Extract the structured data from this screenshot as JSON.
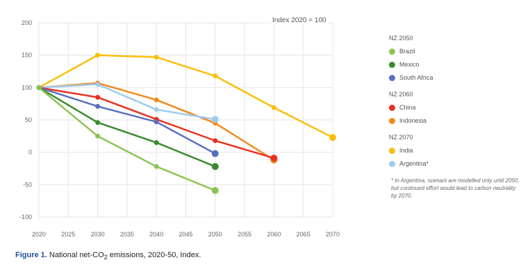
{
  "chart_data": {
    "type": "line",
    "annotation": "Index 2020 = 100",
    "x_ticks": [
      "2020",
      "2025",
      "2030",
      "2035",
      "2040",
      "2045",
      "2050",
      "2055",
      "2060",
      "2065",
      "2070"
    ],
    "y_ticks": [
      "200",
      "150",
      "100",
      "50",
      "0",
      "-50",
      "-100"
    ],
    "xlim": [
      2020,
      2070
    ],
    "ylim": [
      -100,
      200
    ],
    "grid": true,
    "legend_position": "right",
    "groups": [
      {
        "title": "NZ 2050",
        "series": [
          0,
          1,
          2
        ]
      },
      {
        "title": "NZ 2060",
        "series": [
          3,
          4
        ]
      },
      {
        "title": "NZ 2070",
        "series": [
          5,
          6
        ]
      }
    ],
    "series": [
      {
        "name": "Brazil",
        "color": "#8cc453",
        "x": [
          2020,
          2030,
          2040,
          2050
        ],
        "y": [
          100,
          25,
          -22,
          -59
        ]
      },
      {
        "name": "Mexico",
        "color": "#3a8a2e",
        "x": [
          2020,
          2030,
          2040,
          2050
        ],
        "y": [
          100,
          46,
          15,
          -22
        ]
      },
      {
        "name": "South Africa",
        "color": "#5a6fbe",
        "x": [
          2020,
          2030,
          2040,
          2050
        ],
        "y": [
          100,
          71,
          47,
          -2
        ]
      },
      {
        "name": "China",
        "color": "#e8321e",
        "x": [
          2020,
          2030,
          2040,
          2050,
          2060
        ],
        "y": [
          100,
          85,
          51,
          18,
          -9
        ]
      },
      {
        "name": "Indonesia",
        "color": "#f08a1c",
        "x": [
          2020,
          2030,
          2040,
          2050,
          2060
        ],
        "y": [
          100,
          107,
          81,
          45,
          -12
        ]
      },
      {
        "name": "India",
        "color": "#fbbf0a",
        "x": [
          2020,
          2030,
          2040,
          2050,
          2060,
          2070
        ],
        "y": [
          100,
          150,
          147,
          118,
          69,
          23
        ]
      },
      {
        "name": "Argentina*",
        "color": "#9fcbf0",
        "x": [
          2020,
          2030,
          2040,
          2050
        ],
        "y": [
          100,
          105,
          66,
          51
        ]
      }
    ],
    "footnote": "* In Argentina, scenarii are modelled only until 2050, but continued effort would lead to carbon neutrality by 2070."
  },
  "caption": {
    "label": "Figure 1.",
    "text_before": " National net-CO",
    "subscript": "2",
    "text_after": " emissions, 2020-50, Index."
  }
}
